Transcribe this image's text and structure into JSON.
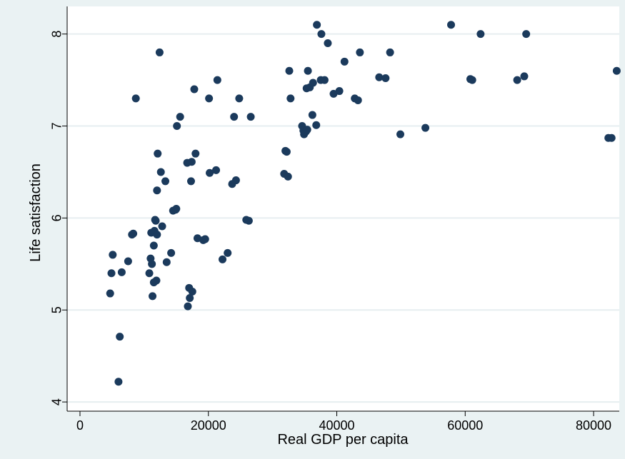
{
  "chart_data": {
    "type": "scatter",
    "title": "",
    "xlabel": "Real GDP per capita",
    "ylabel": "Life satisfaction",
    "xlim": [
      -2000,
      84000
    ],
    "ylim": [
      3.9,
      8.3
    ],
    "xticks": [
      0,
      20000,
      40000,
      60000,
      80000
    ],
    "yticks": [
      4,
      5,
      6,
      7,
      8
    ],
    "grid": "horizontal",
    "colors": {
      "background": "#eaf2f3",
      "plot": "#ffffff",
      "marker": "#1b3a5c",
      "grid": "#e6eef0"
    },
    "points": [
      [
        4700,
        5.18
      ],
      [
        4900,
        5.4
      ],
      [
        5100,
        5.6
      ],
      [
        6000,
        4.22
      ],
      [
        6200,
        4.71
      ],
      [
        6500,
        5.41
      ],
      [
        7500,
        5.53
      ],
      [
        8100,
        5.82
      ],
      [
        8300,
        5.83
      ],
      [
        8700,
        7.3
      ],
      [
        10800,
        5.4
      ],
      [
        11000,
        5.56
      ],
      [
        11100,
        5.84
      ],
      [
        11200,
        5.5
      ],
      [
        11300,
        5.15
      ],
      [
        11500,
        5.7
      ],
      [
        11500,
        5.3
      ],
      [
        11600,
        5.86
      ],
      [
        11700,
        5.98
      ],
      [
        11800,
        5.97
      ],
      [
        11900,
        5.32
      ],
      [
        12000,
        5.82
      ],
      [
        12000,
        6.3
      ],
      [
        12100,
        6.7
      ],
      [
        12400,
        7.8
      ],
      [
        12600,
        6.5
      ],
      [
        12800,
        5.91
      ],
      [
        13300,
        6.4
      ],
      [
        13500,
        5.52
      ],
      [
        14200,
        5.62
      ],
      [
        14500,
        6.08
      ],
      [
        14900,
        6.09
      ],
      [
        15000,
        6.1
      ],
      [
        15100,
        7.0
      ],
      [
        15600,
        7.1
      ],
      [
        16700,
        6.6
      ],
      [
        16800,
        5.04
      ],
      [
        17000,
        5.24
      ],
      [
        17100,
        5.13
      ],
      [
        17300,
        6.4
      ],
      [
        17400,
        6.61
      ],
      [
        17500,
        5.2
      ],
      [
        17800,
        7.4
      ],
      [
        18000,
        6.7
      ],
      [
        18300,
        5.78
      ],
      [
        19200,
        5.76
      ],
      [
        19500,
        5.77
      ],
      [
        20100,
        7.3
      ],
      [
        20200,
        6.49
      ],
      [
        21200,
        6.52
      ],
      [
        21400,
        7.5
      ],
      [
        22200,
        5.55
      ],
      [
        23000,
        5.62
      ],
      [
        23700,
        6.37
      ],
      [
        24000,
        7.1
      ],
      [
        24300,
        6.41
      ],
      [
        24800,
        7.3
      ],
      [
        25900,
        5.98
      ],
      [
        26300,
        5.97
      ],
      [
        26600,
        7.1
      ],
      [
        31800,
        6.48
      ],
      [
        32000,
        6.73
      ],
      [
        32200,
        6.72
      ],
      [
        32400,
        6.45
      ],
      [
        32600,
        7.6
      ],
      [
        32800,
        7.3
      ],
      [
        34600,
        7.0
      ],
      [
        34800,
        6.95
      ],
      [
        34900,
        6.91
      ],
      [
        35200,
        6.94
      ],
      [
        35300,
        7.41
      ],
      [
        35400,
        6.96
      ],
      [
        35500,
        7.6
      ],
      [
        35800,
        7.42
      ],
      [
        36200,
        7.12
      ],
      [
        36300,
        7.47
      ],
      [
        36800,
        7.01
      ],
      [
        36900,
        8.1
      ],
      [
        37500,
        7.5
      ],
      [
        37600,
        8.0
      ],
      [
        38100,
        7.5
      ],
      [
        38600,
        7.9
      ],
      [
        39500,
        7.35
      ],
      [
        40400,
        7.38
      ],
      [
        41200,
        7.7
      ],
      [
        42800,
        7.3
      ],
      [
        43300,
        7.28
      ],
      [
        43600,
        7.8
      ],
      [
        46600,
        7.53
      ],
      [
        47600,
        7.52
      ],
      [
        48300,
        7.8
      ],
      [
        49900,
        6.91
      ],
      [
        53800,
        6.98
      ],
      [
        57800,
        8.1
      ],
      [
        60800,
        7.51
      ],
      [
        61100,
        7.5
      ],
      [
        62400,
        8.0
      ],
      [
        68100,
        7.5
      ],
      [
        69200,
        7.54
      ],
      [
        69500,
        8.0
      ],
      [
        82300,
        6.87
      ],
      [
        82800,
        6.87
      ],
      [
        83600,
        7.6
      ]
    ]
  }
}
